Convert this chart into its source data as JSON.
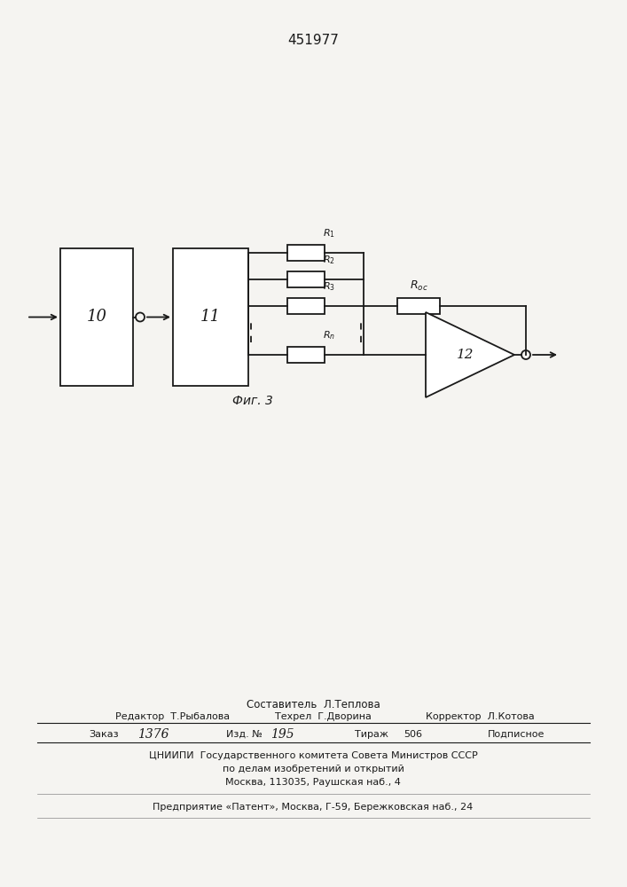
{
  "title": "451977",
  "fig_label": "Фиг. 3",
  "bg_color": "#f5f4f1",
  "line_color": "#1a1a1a",
  "label10": "10",
  "label11": "11",
  "label12": "12",
  "r_labels": [
    "$R_1$",
    "$R_2$",
    "$R_3$",
    "$R_n$"
  ],
  "composer": "Составитель  Л.Теплова",
  "editor_label": "Редактор",
  "editor_name": "Т.Рыбалова",
  "techred_label": "Техрел",
  "techred_name": "Г.Дворина",
  "corrector_label": "Корректор",
  "corrector_name": "Л.Котова",
  "order_label": "Заказ",
  "order_num": "1376",
  "izd_label": "Изд. №",
  "izd_num": "195",
  "tirazh_label": "Тираж",
  "tirazh_num": "506",
  "podpisnoe": "Подписное",
  "institute_line1": "ЦНИИПИ  Государственного комитета Совета Министров СССР",
  "institute_line2": "по делам изобретений и открытий",
  "institute_line3": "Москва, 113035, Раушская наб., 4",
  "enterprise_line": "Предприятие «Патент», Москва, Г-59, Бережковская наб., 24"
}
